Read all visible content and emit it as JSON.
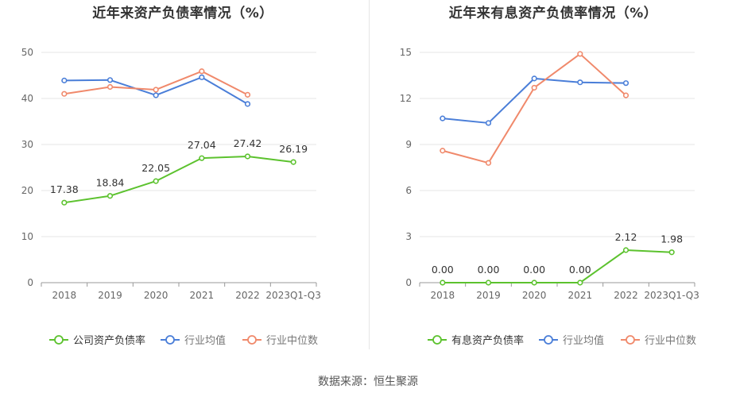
{
  "source_text": "数据来源：恒生聚源",
  "colors": {
    "company": "#5cc22e",
    "industry_avg": "#4a7ed8",
    "industry_median": "#f0896b",
    "grid": "#e6e6e6",
    "axis_text": "#666666",
    "label_text": "#333333"
  },
  "chart_data": [
    {
      "type": "line",
      "title": "近年来资产负债率情况（%）",
      "categories": [
        "2018",
        "2019",
        "2020",
        "2021",
        "2022",
        "2023Q1-Q3"
      ],
      "ylim": [
        0,
        50
      ],
      "yticks": [
        0,
        10,
        20,
        30,
        40,
        50
      ],
      "grid": true,
      "legend_position": "bottom",
      "series": [
        {
          "name": "公司资产负债率",
          "color_key": "company",
          "values": [
            17.38,
            18.84,
            22.05,
            27.04,
            27.42,
            26.19
          ],
          "labels": [
            "17.38",
            "18.84",
            "22.05",
            "27.04",
            "27.42",
            "26.19"
          ]
        },
        {
          "name": "行业均值",
          "color_key": "industry_avg",
          "values": [
            43.9,
            44.0,
            40.7,
            44.6,
            38.8,
            null
          ]
        },
        {
          "name": "行业中位数",
          "color_key": "industry_median",
          "values": [
            41.0,
            42.5,
            41.9,
            45.9,
            40.8,
            null
          ]
        }
      ]
    },
    {
      "type": "line",
      "title": "近年来有息资产负债率情况（%）",
      "categories": [
        "2018",
        "2019",
        "2020",
        "2021",
        "2022",
        "2023Q1-Q3"
      ],
      "ylim": [
        0,
        15
      ],
      "yticks": [
        0,
        3,
        6,
        9,
        12,
        15
      ],
      "grid": true,
      "legend_position": "bottom",
      "series": [
        {
          "name": "有息资产负债率",
          "color_key": "company",
          "values": [
            0.0,
            0.0,
            0.0,
            0.0,
            2.12,
            1.98
          ],
          "labels": [
            "0.00",
            "0.00",
            "0.00",
            "0.00",
            "2.12",
            "1.98"
          ]
        },
        {
          "name": "行业均值",
          "color_key": "industry_avg",
          "values": [
            10.7,
            10.4,
            13.3,
            13.05,
            13.0,
            null
          ]
        },
        {
          "name": "行业中位数",
          "color_key": "industry_median",
          "values": [
            8.6,
            7.8,
            12.7,
            14.9,
            12.2,
            null
          ]
        }
      ]
    }
  ]
}
